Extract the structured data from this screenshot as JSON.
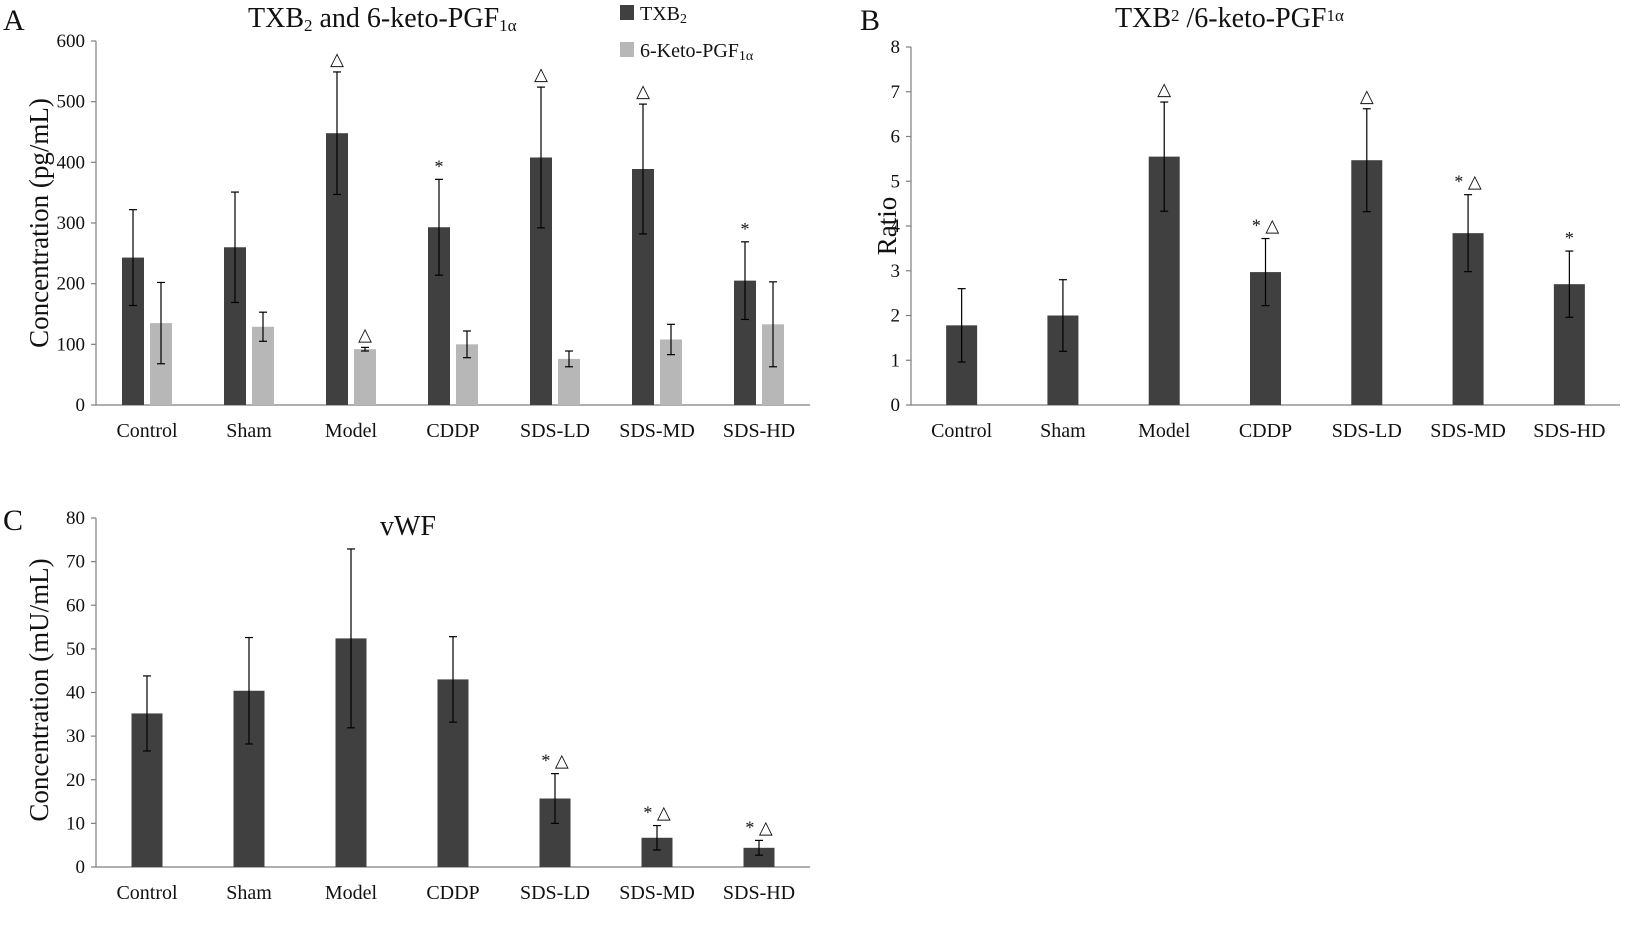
{
  "chart_data": [
    {
      "panel": "A",
      "type": "bar",
      "title": "TXB2  and 6-keto-PGF1α",
      "title_main": "TXB",
      "title_sub1": "2",
      "title_mid": "  and 6-keto-PGF",
      "title_sub2": "1α",
      "ylabel": "Concentration (pg/mL)",
      "xlabel": "",
      "ylim": [
        0,
        600
      ],
      "yticks": [
        0,
        100,
        200,
        300,
        400,
        500,
        600
      ],
      "categories": [
        "Control",
        "Sham",
        "Model",
        "CDDP",
        "SDS-LD",
        "SDS-MD",
        "SDS-HD"
      ],
      "legend_position": "top-right",
      "series": [
        {
          "name": "TXB2",
          "legend_main": "TXB",
          "legend_sub": "2",
          "color": "#404040",
          "values": [
            243,
            260,
            448,
            293,
            408,
            389,
            205
          ],
          "errors": [
            79,
            91,
            101,
            79,
            116,
            107,
            64
          ],
          "marks": [
            "",
            "",
            "△",
            "*",
            "△",
            "△",
            "*"
          ]
        },
        {
          "name": "6-Keto-PGF1α",
          "legend_main": "6-Keto-PGF",
          "legend_sub": "1α",
          "color": "#b7b7b7",
          "values": [
            135,
            129,
            92,
            100,
            76,
            108,
            133
          ],
          "errors": [
            67,
            24,
            3,
            22,
            13,
            25,
            70
          ],
          "marks": [
            "",
            "",
            "△",
            "",
            "",
            "",
            ""
          ]
        }
      ]
    },
    {
      "panel": "B",
      "type": "bar",
      "title": "TXB2 /6-keto-PGF1α",
      "title_main": "TXB",
      "title_sub1": "2",
      "title_mid": " /6-keto-PGF",
      "title_sub2": "1α",
      "ylabel": "Ratio",
      "xlabel": "",
      "ylim": [
        0,
        8
      ],
      "yticks": [
        0,
        1,
        2,
        3,
        4,
        5,
        6,
        7,
        8
      ],
      "categories": [
        "Control",
        "Sham",
        "Model",
        "CDDP",
        "SDS-LD",
        "SDS-MD",
        "SDS-HD"
      ],
      "series": [
        {
          "name": "Ratio",
          "color": "#404040",
          "values": [
            1.78,
            2.0,
            5.55,
            2.97,
            5.47,
            3.84,
            2.7
          ],
          "errors": [
            0.82,
            0.8,
            1.22,
            0.75,
            1.15,
            0.86,
            0.74
          ],
          "marks": [
            "",
            "",
            "△",
            "* △",
            "△",
            "* △",
            "*"
          ]
        }
      ]
    },
    {
      "panel": "C",
      "type": "bar",
      "title": "vWF",
      "ylabel": "Concentration (mU/mL)",
      "xlabel": "",
      "ylim": [
        0,
        80
      ],
      "yticks": [
        0,
        10,
        20,
        30,
        40,
        50,
        60,
        70,
        80
      ],
      "categories": [
        "Control",
        "Sham",
        "Model",
        "CDDP",
        "SDS-LD",
        "SDS-MD",
        "SDS-HD"
      ],
      "series": [
        {
          "name": "vWF",
          "color": "#404040",
          "values": [
            35.2,
            40.4,
            52.4,
            43.0,
            15.7,
            6.7,
            4.4
          ],
          "errors": [
            8.6,
            12.2,
            20.5,
            9.8,
            5.7,
            2.8,
            1.7
          ],
          "marks": [
            "",
            "",
            "",
            "",
            "* △",
            "* △",
            "* △"
          ]
        }
      ]
    }
  ]
}
